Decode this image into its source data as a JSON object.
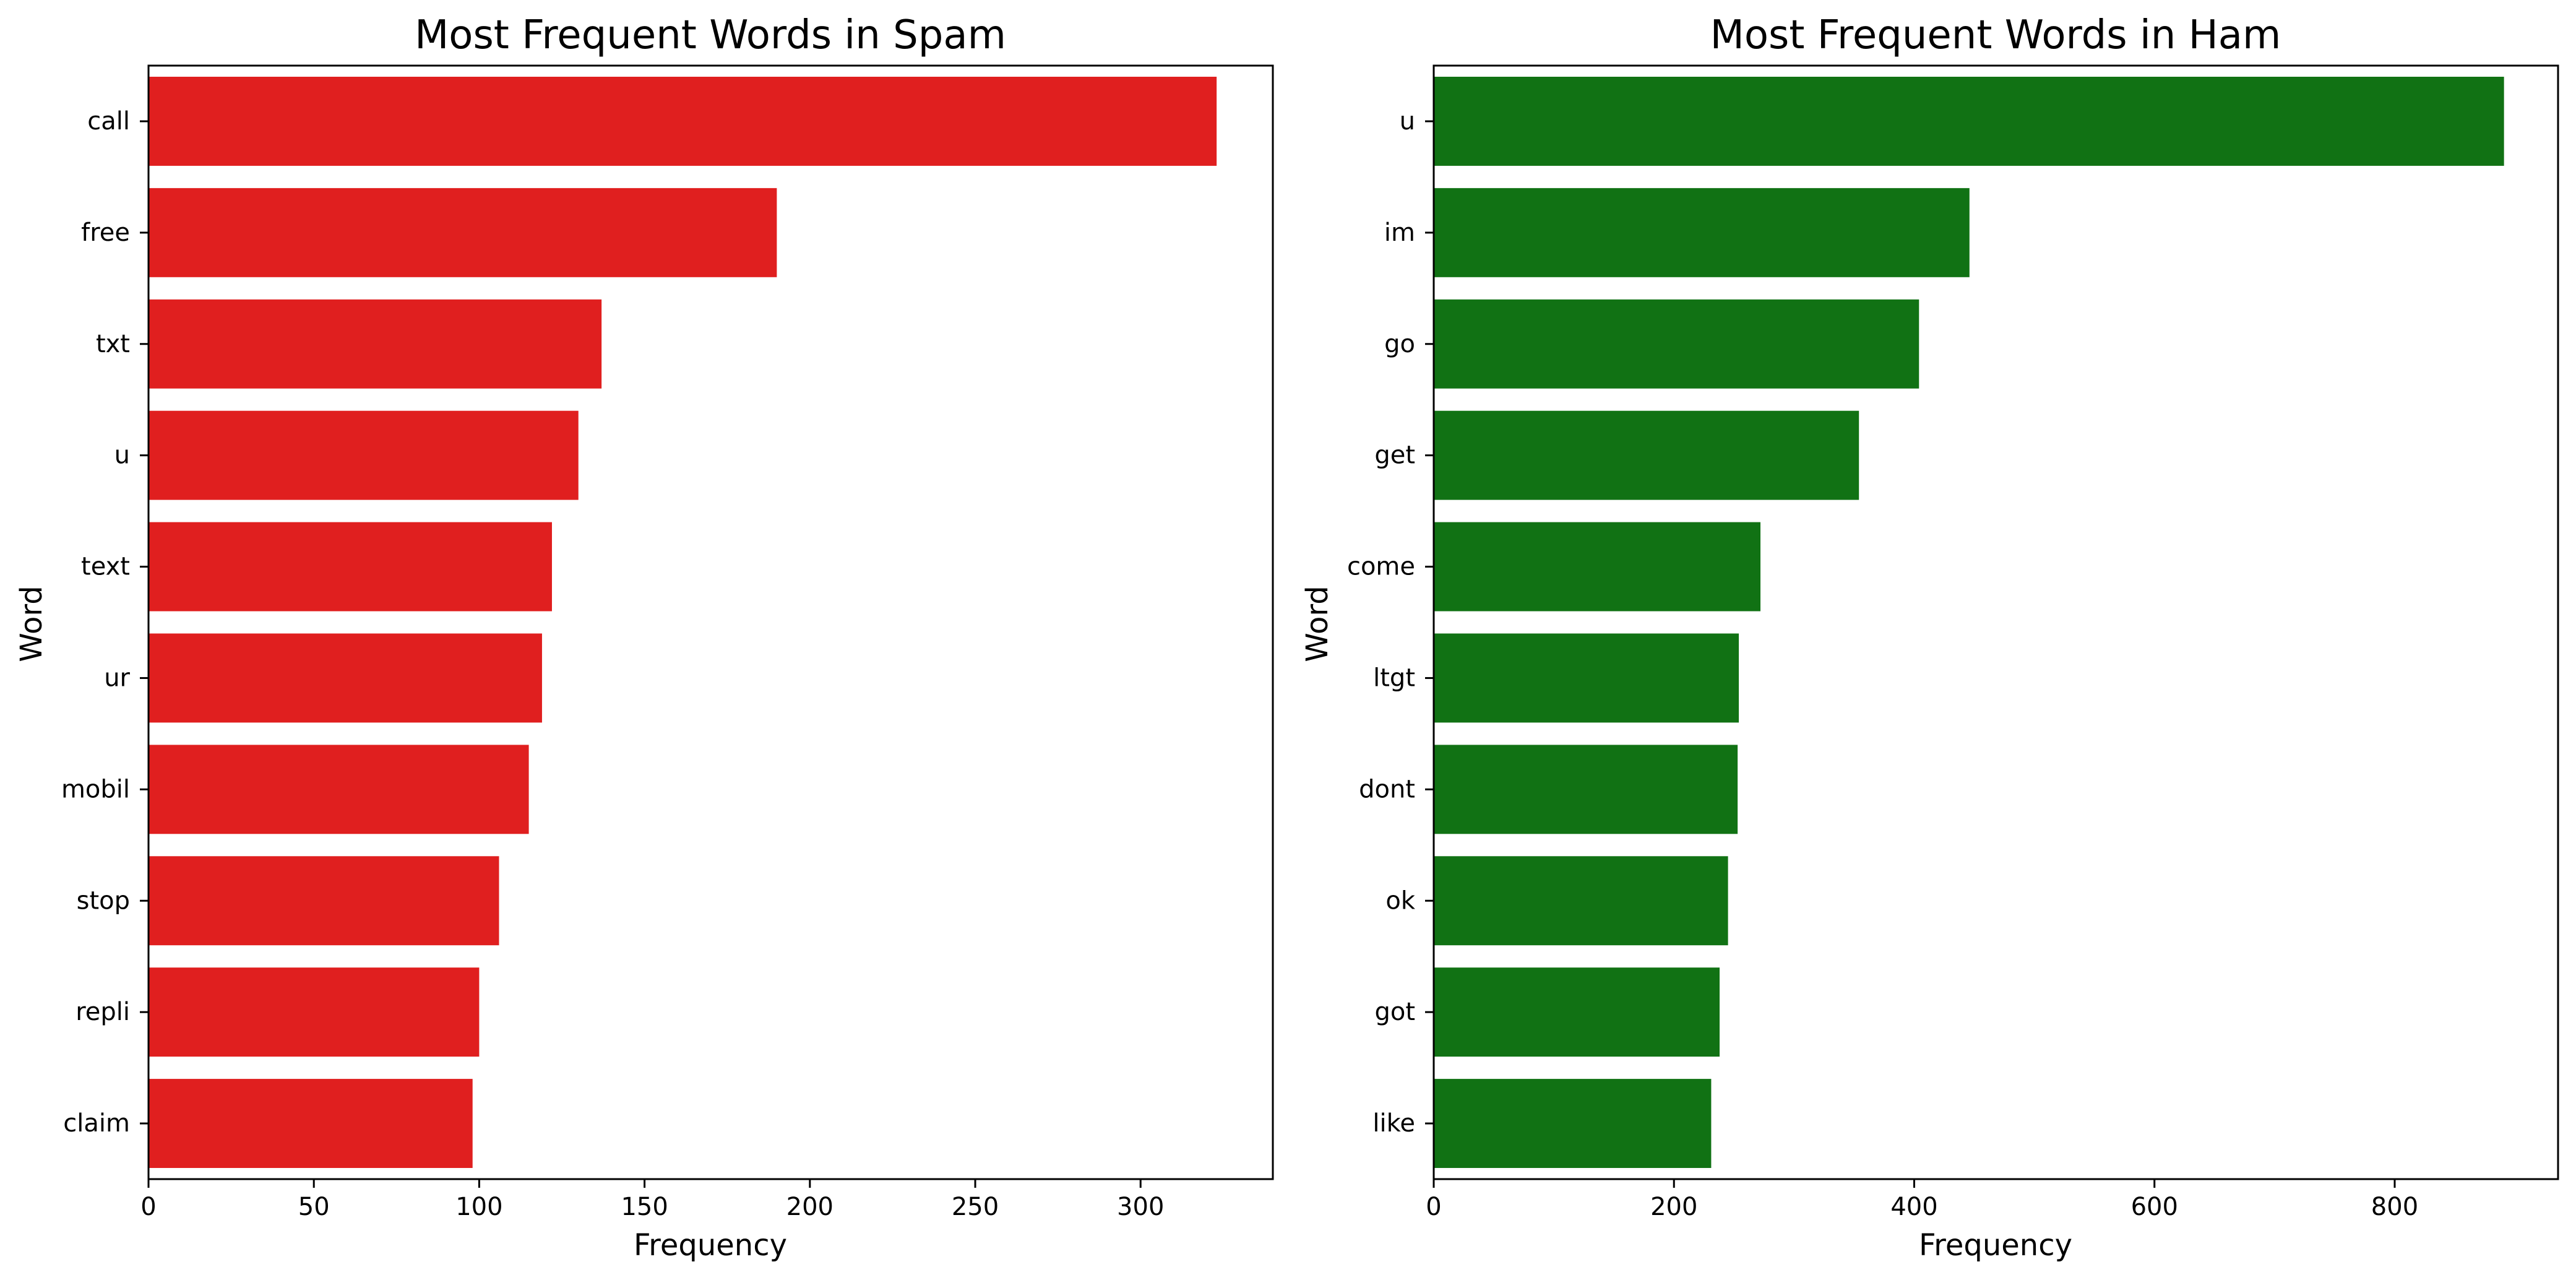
{
  "chart_data": [
    {
      "type": "bar",
      "orientation": "horizontal",
      "title": "Most Frequent Words in Spam",
      "xlabel": "Frequency",
      "ylabel": "Word",
      "categories": [
        "call",
        "free",
        "txt",
        "u",
        "text",
        "ur",
        "mobil",
        "stop",
        "repli",
        "claim"
      ],
      "values": [
        323,
        190,
        137,
        130,
        122,
        119,
        115,
        106,
        100,
        98
      ],
      "xlim": [
        0,
        340
      ],
      "xticks": [
        0,
        50,
        100,
        150,
        200,
        250,
        300
      ],
      "xtick_labels": [
        "0",
        "50",
        "100",
        "150",
        "200",
        "250",
        "300"
      ],
      "color": "#e01f1f",
      "grid": false
    },
    {
      "type": "bar",
      "orientation": "horizontal",
      "title": "Most Frequent Words in Ham",
      "xlabel": "Frequency",
      "ylabel": "Word",
      "categories": [
        "u",
        "im",
        "go",
        "get",
        "come",
        "ltgt",
        "dont",
        "ok",
        "got",
        "like"
      ],
      "values": [
        891,
        446,
        404,
        354,
        272,
        254,
        253,
        245,
        238,
        231
      ],
      "xlim": [
        0,
        936
      ],
      "xticks": [
        0,
        200,
        400,
        600,
        800
      ],
      "xtick_labels": [
        "0",
        "200",
        "400",
        "600",
        "800"
      ],
      "color": "#117214",
      "grid": false
    }
  ]
}
